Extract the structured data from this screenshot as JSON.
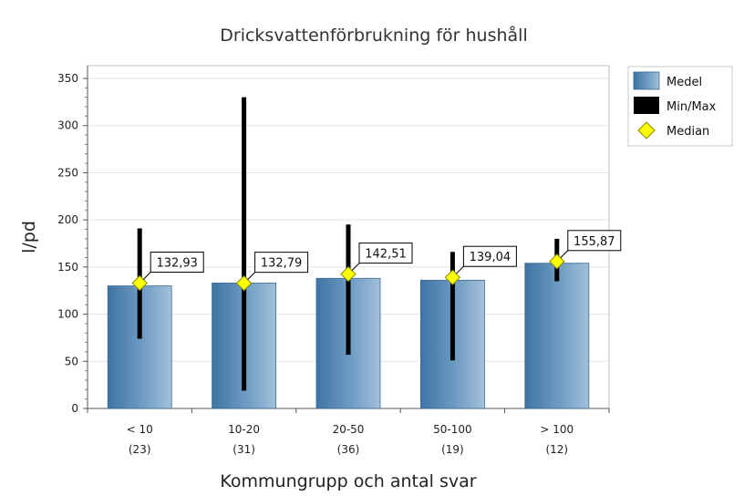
{
  "chart_data": {
    "type": "bar",
    "title": "Dricksvattenförbrukning för hushåll",
    "xlabel": "Kommungrupp och antal svar",
    "ylabel": "l/pd",
    "ylim": [
      0,
      350
    ],
    "yticks": [
      0,
      50,
      100,
      150,
      200,
      250,
      300,
      350
    ],
    "grid": true,
    "legend_position": "right-top",
    "categories": [
      {
        "label": "< 10",
        "count": "(23)"
      },
      {
        "label": "10-20",
        "count": "(31)"
      },
      {
        "label": "20-50",
        "count": "(36)"
      },
      {
        "label": "50-100",
        "count": "(19)"
      },
      {
        "label": "> 100",
        "count": "(12)"
      }
    ],
    "series": [
      {
        "name": "Medel",
        "type": "bar",
        "color": "#5b8db8",
        "values": [
          130,
          133,
          138,
          136,
          154
        ]
      },
      {
        "name": "Min/Max",
        "type": "range",
        "color": "#000000",
        "min": [
          74,
          19,
          57,
          51,
          135
        ],
        "max": [
          191,
          330,
          195,
          166,
          180
        ]
      },
      {
        "name": "Median",
        "type": "point",
        "color": "#ffff00",
        "values": [
          132.93,
          132.79,
          142.51,
          139.04,
          155.87
        ],
        "labels": [
          "132,93",
          "132,79",
          "142,51",
          "139,04",
          "155,87"
        ]
      }
    ]
  }
}
